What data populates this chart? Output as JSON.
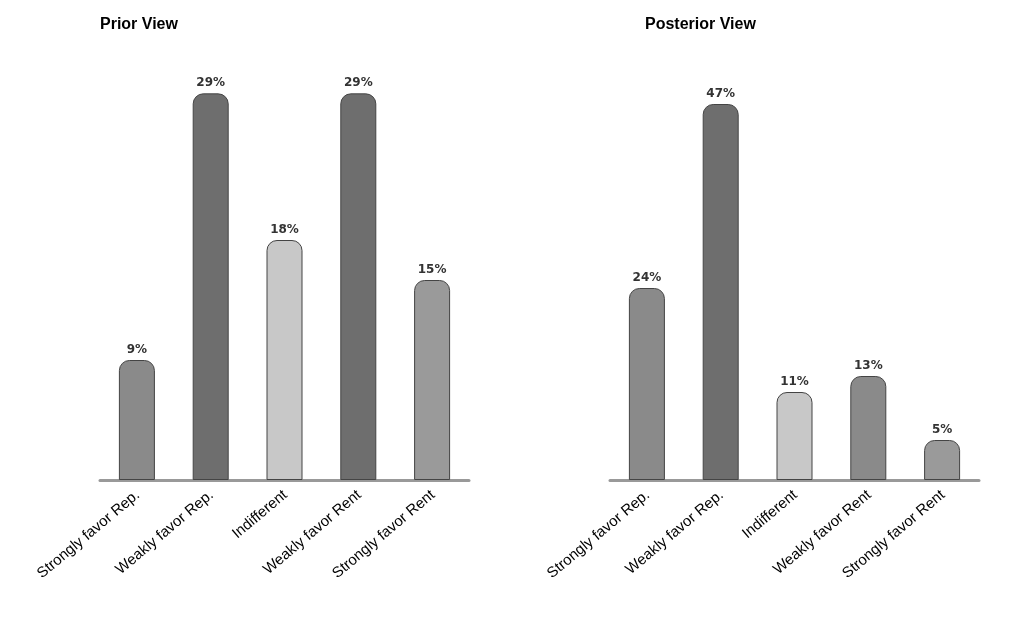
{
  "chart_data": [
    {
      "type": "bar",
      "title": "Prior View",
      "categories": [
        "Strongly favor Rep.",
        "Weakly favor Rep.",
        "Indifferent",
        "Weakly favor Rent",
        "Strongly favor Rent"
      ],
      "values": [
        9,
        29,
        18,
        29,
        15
      ],
      "colors": [
        "#8a8a8a",
        "#6e6e6e",
        "#c8c8c8",
        "#6e6e6e",
        "#9a9a9a"
      ],
      "data_labels": true,
      "value_labels": [
        "9%",
        "29%",
        "18%",
        "29%",
        "15%"
      ]
    },
    {
      "type": "bar",
      "title": "Posterior View",
      "categories": [
        "Strongly favor Rep.",
        "Weakly favor Rep.",
        "Indifferent",
        "Weakly favor Rent",
        "Strongly favor Rent"
      ],
      "values": [
        24,
        47,
        11,
        13,
        5
      ],
      "colors": [
        "#8a8a8a",
        "#6e6e6e",
        "#c8c8c8",
        "#8a8a8a",
        "#9a9a9a"
      ],
      "data_labels": true,
      "value_labels": [
        "24%",
        "47%",
        "11%",
        "13%",
        "5%"
      ]
    }
  ]
}
